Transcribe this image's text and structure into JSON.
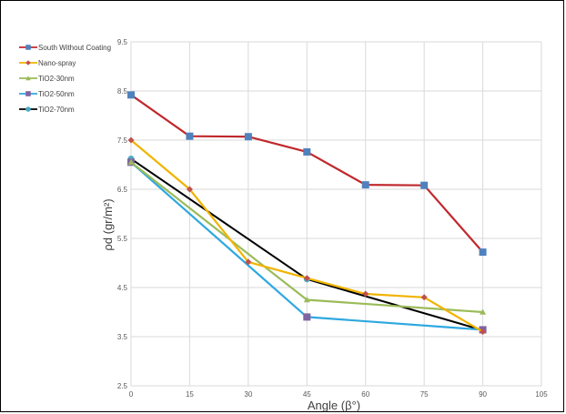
{
  "chart_data": {
    "type": "line",
    "xlabel": "Angle (β°)",
    "ylabel": "ρd (gr/m²)",
    "xlim": [
      0,
      105
    ],
    "ylim": [
      2.5,
      9.5
    ],
    "xticks": [
      0,
      15,
      30,
      45,
      60,
      75,
      90,
      105
    ],
    "xtick_labels": [
      "0",
      "15",
      "30",
      "45",
      "60",
      "75",
      "90",
      "105"
    ],
    "yticks": [
      2.5,
      3.5,
      4.5,
      5.5,
      6.5,
      7.5,
      8.5,
      9.5
    ],
    "ytick_labels": [
      "2.5",
      "3.5",
      "4.5",
      "5.5",
      "6.5",
      "7.5",
      "8.5",
      "9.5"
    ],
    "grid": true,
    "legend_position": "top-left",
    "series": [
      {
        "name": "South Without Coating",
        "color": "#c0282d",
        "marker": "square",
        "marker_color": "#4f81bd",
        "x": [
          0,
          15,
          30,
          45,
          60,
          75,
          90
        ],
        "y": [
          8.42,
          7.58,
          7.57,
          7.26,
          6.59,
          6.58,
          5.22
        ]
      },
      {
        "name": "Nano-spray",
        "color": "#f0b400",
        "marker": "diamond",
        "marker_color": "#c0504d",
        "x": [
          0,
          15,
          30,
          45,
          60,
          75,
          90
        ],
        "y": [
          7.5,
          6.5,
          5.02,
          4.69,
          4.37,
          4.3,
          3.6
        ]
      },
      {
        "name": "TiO2-30nm",
        "color": "#9bbb59",
        "marker": "triangle",
        "marker_color": "#9bbb59",
        "x": [
          0,
          45,
          90
        ],
        "y": [
          7.05,
          4.25,
          4.0
        ]
      },
      {
        "name": "TiO2-50nm",
        "color": "#2ea8e0",
        "marker": "square",
        "marker_color": "#8064a2",
        "x": [
          0,
          45,
          90
        ],
        "y": [
          7.05,
          3.9,
          3.64
        ]
      },
      {
        "name": "TiO2-70nm",
        "color": "#000000",
        "marker": "circle",
        "marker_color": "#4bacc6",
        "x": [
          0,
          45,
          90
        ],
        "y": [
          7.12,
          4.67,
          3.63
        ]
      }
    ]
  }
}
